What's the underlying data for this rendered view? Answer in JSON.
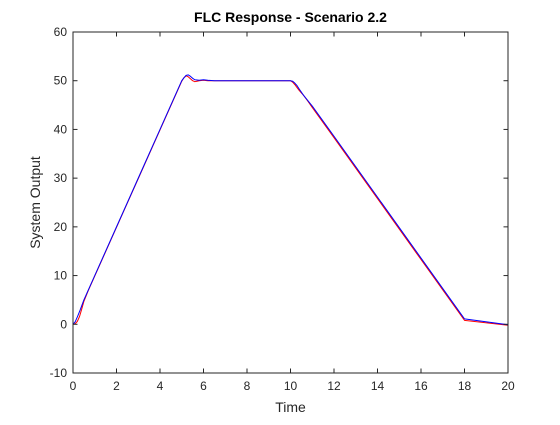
{
  "chart_data": {
    "type": "line",
    "title": "FLC Response - Scenario 2.2",
    "xlabel": "Time",
    "ylabel": "System Output",
    "xlim": [
      0,
      20
    ],
    "ylim": [
      -10,
      60
    ],
    "xticks": [
      0,
      2,
      4,
      6,
      8,
      10,
      12,
      14,
      16,
      18,
      20
    ],
    "yticks": [
      -10,
      0,
      10,
      20,
      30,
      40,
      50,
      60
    ],
    "grid": false,
    "legend": "none",
    "series": [
      {
        "color": "#ff0000",
        "x": [
          0,
          0.1,
          0.2,
          0.3,
          0.4,
          0.5,
          0.7,
          1,
          2,
          3,
          4,
          5,
          5.1,
          5.2,
          5.3,
          5.4,
          5.5,
          5.6,
          5.7,
          5.8,
          6.0,
          6.2,
          6.5,
          7,
          8,
          9,
          10,
          10.1,
          10.2,
          10.3,
          10.4,
          10.5,
          10.6,
          10.8,
          11,
          12,
          14,
          16,
          18,
          20
        ],
        "y": [
          0,
          0.1,
          0.6,
          1.6,
          3.1,
          4.7,
          6.9,
          9.9,
          19.9,
          29.9,
          39.9,
          49.9,
          50.6,
          51.0,
          50.8,
          50.4,
          50.0,
          49.8,
          49.9,
          50.0,
          50.1,
          50.0,
          50.0,
          50.0,
          50.0,
          50.0,
          50.0,
          49.7,
          49.2,
          48.6,
          48.0,
          47.5,
          47.0,
          45.8,
          44.5,
          38.3,
          25.8,
          13.3,
          0.8,
          -0.2
        ]
      },
      {
        "color": "#0000ff",
        "x": [
          0,
          0.1,
          0.2,
          0.3,
          0.4,
          0.5,
          0.7,
          1,
          2,
          3,
          4,
          5,
          5.1,
          5.2,
          5.3,
          5.4,
          5.5,
          5.6,
          5.8,
          6.0,
          6.2,
          6.5,
          7,
          8,
          9,
          10,
          10.1,
          10.2,
          10.3,
          10.4,
          10.6,
          10.8,
          11,
          12,
          14,
          16,
          18,
          20
        ],
        "y": [
          0,
          0.5,
          1.5,
          2.6,
          3.8,
          5.0,
          7.0,
          10.0,
          20.0,
          30.0,
          40.0,
          50.0,
          50.6,
          51.1,
          51.2,
          50.9,
          50.5,
          50.2,
          50.1,
          50.2,
          50.1,
          50.0,
          50.0,
          50.0,
          50.0,
          50.0,
          49.9,
          49.5,
          49.0,
          48.3,
          47.0,
          45.9,
          44.8,
          38.6,
          26.1,
          13.6,
          1.1,
          -0.1
        ]
      }
    ]
  }
}
